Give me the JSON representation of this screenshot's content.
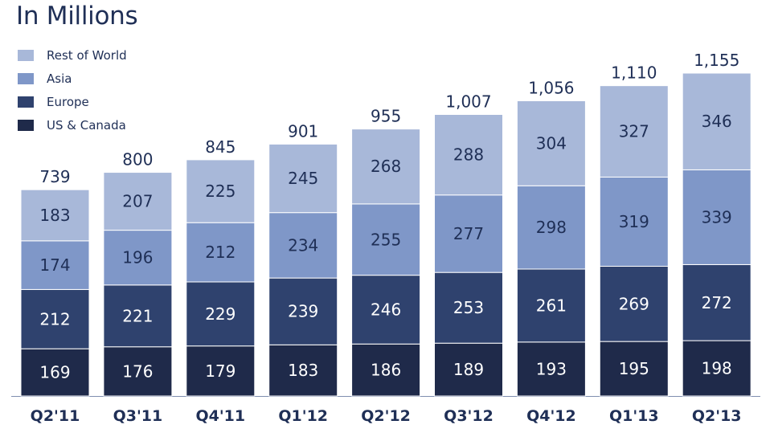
{
  "title": "In Millions",
  "chart_data": {
    "type": "bar",
    "stacked": true,
    "title": "In Millions",
    "categories": [
      "Q2'11",
      "Q3'11",
      "Q4'11",
      "Q1'12",
      "Q2'12",
      "Q3'12",
      "Q4'12",
      "Q1'13",
      "Q2'13"
    ],
    "series": [
      {
        "name": "US & Canada",
        "color": "#1f2a4a",
        "values": [
          169,
          176,
          179,
          183,
          186,
          189,
          193,
          195,
          198
        ]
      },
      {
        "name": "Europe",
        "color": "#2f426e",
        "values": [
          212,
          221,
          229,
          239,
          246,
          253,
          261,
          269,
          272
        ]
      },
      {
        "name": "Asia",
        "color": "#7f97c8",
        "values": [
          174,
          196,
          212,
          234,
          255,
          277,
          298,
          319,
          339
        ]
      },
      {
        "name": "Rest of World",
        "color": "#a8b8d9",
        "values": [
          183,
          207,
          225,
          245,
          268,
          288,
          304,
          327,
          346
        ]
      }
    ],
    "totals": [
      "739",
      "800",
      "845",
      "901",
      "955",
      "1,007",
      "1,056",
      "1,110",
      "1,155"
    ],
    "legend_order": [
      "Rest of World",
      "Asia",
      "Europe",
      "US & Canada"
    ],
    "legend_position": "top-left",
    "ylim": [
      0,
      1155
    ],
    "grid": false
  }
}
